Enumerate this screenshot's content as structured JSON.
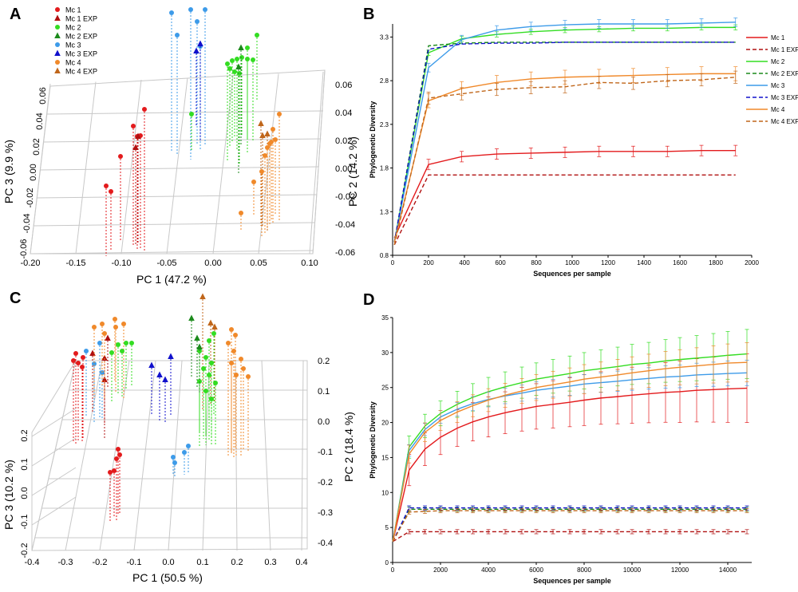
{
  "colors": {
    "mc1": "#e31a1c",
    "mc1exp": "#b01010",
    "mc2": "#33dd22",
    "mc2exp": "#1b8a1b",
    "mc3": "#3d9be9",
    "mc3exp": "#1010cc",
    "mc4": "#f0892a",
    "mc4exp": "#c0661a"
  },
  "legend_pcoa": [
    "Mc 1",
    "Mc 1 EXP",
    "Mc 2",
    "Mc 2 EXP",
    "Mc 3",
    "Mc 3 EXP",
    "Mc 4",
    "Mc 4 EXP"
  ],
  "legend_rare": [
    "Mc 1",
    "Mc 1 EXP",
    "Mc 2",
    "Mc 2 EXP",
    "Mc 3",
    "Mc 3 EXP",
    "Mc 4",
    "Mc 4 EXP"
  ],
  "chart_data": [
    {
      "panel": "A",
      "type": "scatter",
      "title": "",
      "xlabel": "PC 1 (47.2 %)",
      "ylabel": "PC 3 (9.9 %)",
      "zlabel": "PC 2 (14.2 %)",
      "xticks": [
        "-0.20",
        "-0.15",
        "-0.10",
        "-0.05",
        "0.00",
        "0.05",
        "0.10"
      ],
      "yticks": [
        "-0.06",
        "-0.04",
        "-0.02",
        "0.00",
        "0.02",
        "0.04",
        "0.06"
      ],
      "zticks": [
        "0.06",
        "0.04",
        "0.02",
        "0.00",
        "-0.02",
        "-0.04",
        "-0.06"
      ]
    },
    {
      "panel": "B",
      "type": "line",
      "xlabel": "Sequences per sample",
      "ylabel": "Phylogenetic Diversity",
      "xlim": [
        0,
        2000
      ],
      "ylim": [
        0.8,
        3.45
      ],
      "xticks": [
        "0",
        "200",
        "400",
        "600",
        "800",
        "1000",
        "1200",
        "1400",
        "1600",
        "1800",
        "2000"
      ],
      "yticks": [
        "0.8",
        "1.3",
        "1.8",
        "2.3",
        "2.8",
        "3.3"
      ],
      "x": [
        10,
        200,
        385,
        580,
        770,
        960,
        1150,
        1340,
        1530,
        1720,
        1910
      ],
      "series": [
        {
          "name": "Mc 1",
          "values": [
            1.0,
            1.84,
            1.93,
            1.96,
            1.97,
            1.98,
            1.99,
            1.99,
            1.99,
            2.0,
            2.0
          ]
        },
        {
          "name": "Mc 1 EXP",
          "values": [
            0.92,
            1.72,
            1.72,
            1.72,
            1.72,
            1.72,
            1.72,
            1.72,
            1.72,
            1.72,
            1.72
          ]
        },
        {
          "name": "Mc 2",
          "values": [
            0.95,
            3.12,
            3.28,
            3.33,
            3.36,
            3.38,
            3.39,
            3.4,
            3.4,
            3.41,
            3.41
          ]
        },
        {
          "name": "Mc 2 EXP",
          "values": [
            0.95,
            3.2,
            3.23,
            3.24,
            3.24,
            3.24,
            3.24,
            3.24,
            3.24,
            3.24,
            3.24
          ]
        },
        {
          "name": "Mc 3",
          "values": [
            0.95,
            2.95,
            3.27,
            3.38,
            3.42,
            3.44,
            3.45,
            3.45,
            3.45,
            3.46,
            3.47
          ]
        },
        {
          "name": "Mc 3 EXP",
          "values": [
            0.95,
            3.16,
            3.22,
            3.23,
            3.23,
            3.24,
            3.24,
            3.24,
            3.24,
            3.24,
            3.24
          ]
        },
        {
          "name": "Mc 4",
          "values": [
            0.95,
            2.57,
            2.71,
            2.78,
            2.82,
            2.84,
            2.85,
            2.86,
            2.87,
            2.88,
            2.88
          ]
        },
        {
          "name": "Mc 4 EXP",
          "values": [
            0.92,
            2.6,
            2.65,
            2.7,
            2.72,
            2.73,
            2.78,
            2.77,
            2.8,
            2.81,
            2.84
          ]
        }
      ]
    },
    {
      "panel": "C",
      "type": "scatter",
      "xlabel": "PC 1 (50.5 %)",
      "ylabel": "PC 3 (10.2 %)",
      "zlabel": "PC 2 (18.4 %)",
      "xticks": [
        "-0.4",
        "-0.3",
        "-0.2",
        "-0.1",
        "0.0",
        "0.1",
        "0.2",
        "0.3",
        "0.4"
      ],
      "yticks": [
        "-0.2",
        "-0.1",
        "0.0",
        "0.1",
        "0.2"
      ],
      "zticks": [
        "0.2",
        "0.1",
        "0.0",
        "-0.1",
        "-0.2",
        "-0.3",
        "-0.4"
      ]
    },
    {
      "panel": "D",
      "type": "line",
      "xlabel": "Sequences per sample",
      "ylabel": "Phylogenetic Diversity",
      "xlim": [
        0,
        15000
      ],
      "ylim": [
        0,
        35
      ],
      "xticks": [
        "0",
        "2000",
        "4000",
        "6000",
        "8000",
        "10000",
        "12000",
        "14000"
      ],
      "yticks": [
        "0",
        "5",
        "10",
        "15",
        "20",
        "25",
        "30",
        "35"
      ],
      "x": [
        10,
        690,
        1350,
        2000,
        2700,
        3350,
        4000,
        4700,
        5400,
        6000,
        6700,
        7400,
        8000,
        8700,
        9400,
        10000,
        10700,
        11400,
        12000,
        12700,
        13400,
        14000,
        14800
      ],
      "series": [
        {
          "name": "Mc 1",
          "values": [
            3,
            13.2,
            16.2,
            17.9,
            19.2,
            20.1,
            20.8,
            21.4,
            21.9,
            22.3,
            22.6,
            22.9,
            23.2,
            23.5,
            23.7,
            23.9,
            24.1,
            24.3,
            24.4,
            24.6,
            24.7,
            24.8,
            24.9
          ]
        },
        {
          "name": "Mc 1 EXP",
          "values": [
            3,
            4.4,
            4.4,
            4.4,
            4.4,
            4.4,
            4.4,
            4.4,
            4.4,
            4.4,
            4.4,
            4.4,
            4.4,
            4.4,
            4.4,
            4.4,
            4.4,
            4.4,
            4.4,
            4.4,
            4.4,
            4.4,
            4.4
          ]
        },
        {
          "name": "Mc 2",
          "values": [
            3,
            16.5,
            19.5,
            21.3,
            22.6,
            23.6,
            24.4,
            25.1,
            25.7,
            26.2,
            26.6,
            27.0,
            27.4,
            27.7,
            28.0,
            28.3,
            28.5,
            28.8,
            29.0,
            29.2,
            29.4,
            29.6,
            29.8
          ]
        },
        {
          "name": "Mc 2 EXP",
          "values": [
            3,
            7.6,
            7.6,
            7.6,
            7.6,
            7.6,
            7.6,
            7.6,
            7.6,
            7.6,
            7.6,
            7.6,
            7.6,
            7.6,
            7.6,
            7.6,
            7.6,
            7.6,
            7.6,
            7.6,
            7.6,
            7.6,
            7.6
          ]
        },
        {
          "name": "Mc 3",
          "values": [
            3,
            16.0,
            19.0,
            20.8,
            21.9,
            22.7,
            23.3,
            23.8,
            24.2,
            24.6,
            24.9,
            25.2,
            25.5,
            25.7,
            25.9,
            26.1,
            26.3,
            26.5,
            26.6,
            26.8,
            26.9,
            27.0,
            27.1
          ]
        },
        {
          "name": "Mc 3 EXP",
          "values": [
            3,
            7.8,
            7.8,
            7.8,
            7.8,
            7.8,
            7.8,
            7.8,
            7.8,
            7.8,
            7.8,
            7.8,
            7.8,
            7.8,
            7.8,
            7.8,
            7.8,
            7.8,
            7.8,
            7.8,
            7.8,
            7.8,
            7.8
          ]
        },
        {
          "name": "Mc 4",
          "values": [
            3,
            15.5,
            18.6,
            20.3,
            21.5,
            22.4,
            23.2,
            23.9,
            24.5,
            25.0,
            25.4,
            25.8,
            26.2,
            26.5,
            26.8,
            27.1,
            27.4,
            27.7,
            27.9,
            28.1,
            28.3,
            28.5,
            28.6
          ]
        },
        {
          "name": "Mc 4 EXP",
          "values": [
            3,
            7.2,
            7.3,
            7.4,
            7.4,
            7.4,
            7.4,
            7.4,
            7.4,
            7.4,
            7.4,
            7.4,
            7.4,
            7.4,
            7.4,
            7.4,
            7.4,
            7.4,
            7.4,
            7.4,
            7.4,
            7.4,
            7.4
          ]
        }
      ]
    }
  ]
}
